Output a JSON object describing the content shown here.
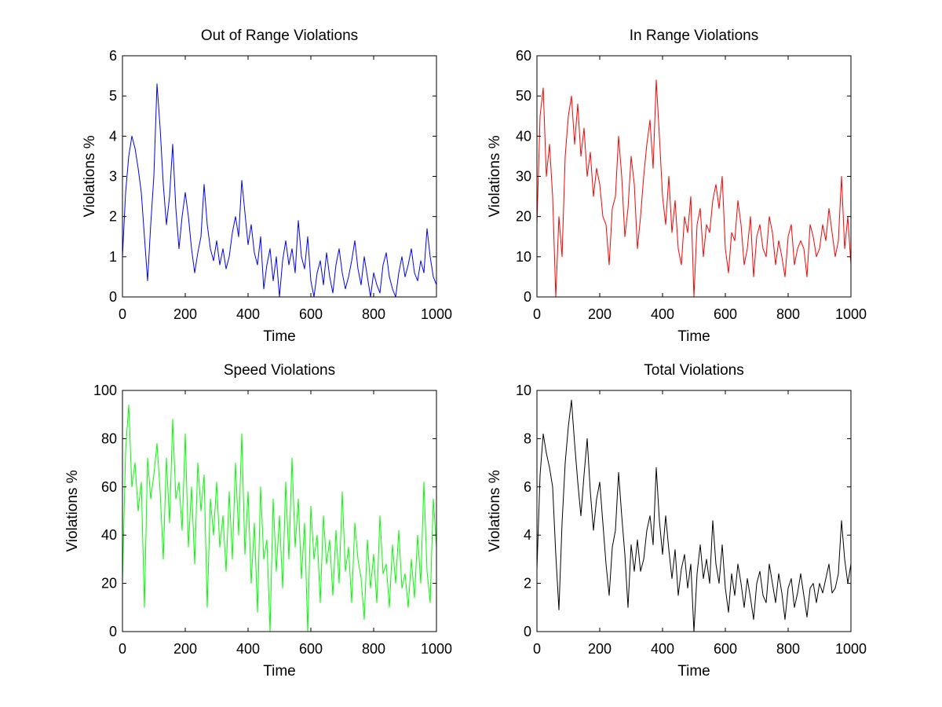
{
  "figure": {
    "background": "#ffffff"
  },
  "chart_data": [
    {
      "type": "line",
      "title": "Out of Range Violations",
      "xlabel": "Time",
      "ylabel": "Violations %",
      "xlim": [
        0,
        1000
      ],
      "ylim": [
        0,
        6
      ],
      "xticks": [
        0,
        200,
        400,
        600,
        800,
        1000
      ],
      "yticks": [
        0,
        1,
        2,
        3,
        4,
        5,
        6
      ],
      "grid": false,
      "series": [
        {
          "color": "#0000ff",
          "x": [
            0,
            10,
            20,
            30,
            40,
            50,
            60,
            70,
            80,
            90,
            100,
            110,
            120,
            130,
            140,
            150,
            160,
            170,
            180,
            190,
            200,
            210,
            220,
            230,
            240,
            250,
            260,
            270,
            280,
            290,
            300,
            310,
            320,
            330,
            340,
            350,
            360,
            370,
            380,
            390,
            400,
            410,
            420,
            430,
            440,
            450,
            460,
            470,
            480,
            490,
            500,
            510,
            520,
            530,
            540,
            550,
            560,
            570,
            580,
            590,
            600,
            610,
            620,
            630,
            640,
            650,
            660,
            670,
            680,
            690,
            700,
            710,
            720,
            730,
            740,
            750,
            760,
            770,
            780,
            790,
            800,
            810,
            820,
            830,
            840,
            850,
            860,
            870,
            880,
            890,
            900,
            910,
            920,
            930,
            940,
            950,
            960,
            970,
            980,
            990,
            1000
          ],
          "values": [
            1.0,
            2.6,
            3.5,
            4.0,
            3.7,
            3.2,
            2.6,
            1.5,
            0.4,
            1.8,
            3.0,
            5.3,
            4.2,
            2.8,
            1.8,
            2.5,
            3.8,
            2.2,
            1.2,
            2.0,
            2.6,
            2.0,
            1.2,
            0.6,
            1.1,
            1.5,
            2.8,
            1.8,
            1.2,
            0.9,
            1.4,
            0.8,
            1.2,
            0.7,
            1.0,
            1.6,
            2.0,
            1.5,
            2.9,
            2.1,
            1.3,
            1.8,
            1.1,
            0.8,
            1.5,
            0.2,
            0.8,
            1.2,
            0.4,
            1.0,
            0.0,
            0.9,
            1.4,
            0.8,
            1.2,
            0.6,
            1.9,
            1.0,
            0.7,
            1.5,
            0.4,
            0.0,
            0.6,
            0.9,
            0.3,
            1.1,
            0.5,
            0.1,
            0.8,
            1.2,
            0.6,
            0.2,
            0.5,
            0.9,
            1.4,
            0.7,
            0.3,
            1.0,
            0.5,
            0.0,
            0.6,
            0.3,
            0.1,
            0.8,
            1.1,
            0.5,
            0.2,
            0.0,
            0.6,
            1.0,
            0.5,
            0.8,
            1.2,
            0.6,
            0.4,
            0.9,
            0.6,
            1.7,
            1.0,
            0.5,
            0.3
          ]
        }
      ]
    },
    {
      "type": "line",
      "title": "In Range Violations",
      "xlabel": "Time",
      "ylabel": "Violations %",
      "xlim": [
        0,
        1000
      ],
      "ylim": [
        0,
        60
      ],
      "xticks": [
        0,
        200,
        400,
        600,
        800,
        1000
      ],
      "yticks": [
        0,
        10,
        20,
        30,
        40,
        50,
        60
      ],
      "grid": false,
      "series": [
        {
          "color": "#ff0000",
          "x": [
            0,
            10,
            20,
            30,
            40,
            50,
            60,
            70,
            80,
            90,
            100,
            110,
            120,
            130,
            140,
            150,
            160,
            170,
            180,
            190,
            200,
            210,
            220,
            230,
            240,
            250,
            260,
            270,
            280,
            290,
            300,
            310,
            320,
            330,
            340,
            350,
            360,
            370,
            380,
            390,
            400,
            410,
            420,
            430,
            440,
            450,
            460,
            470,
            480,
            490,
            500,
            510,
            520,
            530,
            540,
            550,
            560,
            570,
            580,
            590,
            600,
            610,
            620,
            630,
            640,
            650,
            660,
            670,
            680,
            690,
            700,
            710,
            720,
            730,
            740,
            750,
            760,
            770,
            780,
            790,
            800,
            810,
            820,
            830,
            840,
            850,
            860,
            870,
            880,
            890,
            900,
            910,
            920,
            930,
            940,
            950,
            960,
            970,
            980,
            990,
            1000
          ],
          "values": [
            18,
            45,
            52,
            30,
            38,
            25,
            0,
            20,
            10,
            35,
            45,
            50,
            38,
            48,
            35,
            42,
            30,
            36,
            25,
            32,
            28,
            20,
            18,
            8,
            22,
            25,
            40,
            30,
            15,
            22,
            35,
            28,
            12,
            20,
            30,
            38,
            44,
            32,
            54,
            40,
            25,
            18,
            30,
            16,
            24,
            12,
            8,
            20,
            16,
            25,
            0,
            18,
            22,
            10,
            18,
            16,
            24,
            28,
            22,
            30,
            12,
            6,
            16,
            14,
            24,
            18,
            8,
            12,
            20,
            5,
            15,
            18,
            12,
            10,
            20,
            16,
            8,
            14,
            10,
            5,
            15,
            18,
            8,
            12,
            14,
            12,
            5,
            18,
            15,
            10,
            12,
            18,
            14,
            22,
            16,
            10,
            14,
            30,
            12,
            20,
            8
          ]
        }
      ]
    },
    {
      "type": "line",
      "title": "Speed Violations",
      "xlabel": "Time",
      "ylabel": "Violations %",
      "xlim": [
        0,
        1000
      ],
      "ylim": [
        0,
        100
      ],
      "xticks": [
        0,
        200,
        400,
        600,
        800,
        1000
      ],
      "yticks": [
        0,
        20,
        40,
        60,
        80,
        100
      ],
      "grid": false,
      "series": [
        {
          "color": "#00ff00",
          "x": [
            0,
            10,
            20,
            30,
            40,
            50,
            60,
            70,
            80,
            90,
            100,
            110,
            120,
            130,
            140,
            150,
            160,
            170,
            180,
            190,
            200,
            210,
            220,
            230,
            240,
            250,
            260,
            270,
            280,
            290,
            300,
            310,
            320,
            330,
            340,
            350,
            360,
            370,
            380,
            390,
            400,
            410,
            420,
            430,
            440,
            450,
            460,
            470,
            480,
            490,
            500,
            510,
            520,
            530,
            540,
            550,
            560,
            570,
            580,
            590,
            600,
            610,
            620,
            630,
            640,
            650,
            660,
            670,
            680,
            690,
            700,
            710,
            720,
            730,
            740,
            750,
            760,
            770,
            780,
            790,
            800,
            810,
            820,
            830,
            840,
            850,
            860,
            870,
            880,
            890,
            900,
            910,
            920,
            930,
            940,
            950,
            960,
            970,
            980,
            990,
            1000
          ],
          "values": [
            20,
            75,
            94,
            60,
            70,
            50,
            62,
            10,
            72,
            55,
            65,
            78,
            58,
            30,
            72,
            45,
            88,
            55,
            62,
            42,
            82,
            35,
            60,
            28,
            70,
            50,
            65,
            10,
            55,
            40,
            62,
            35,
            48,
            25,
            58,
            30,
            70,
            40,
            82,
            32,
            58,
            20,
            45,
            8,
            60,
            30,
            38,
            0,
            55,
            25,
            48,
            18,
            62,
            30,
            72,
            35,
            55,
            22,
            45,
            0,
            52,
            30,
            40,
            12,
            48,
            28,
            38,
            15,
            42,
            20,
            58,
            25,
            35,
            12,
            45,
            30,
            22,
            5,
            38,
            18,
            32,
            12,
            48,
            24,
            28,
            10,
            36,
            20,
            42,
            18,
            24,
            10,
            30,
            14,
            40,
            20,
            62,
            25,
            12,
            55,
            35
          ]
        }
      ]
    },
    {
      "type": "line",
      "title": "Total Violations",
      "xlabel": "Time",
      "ylabel": "Violations %",
      "xlim": [
        0,
        1000
      ],
      "ylim": [
        0,
        10
      ],
      "xticks": [
        0,
        200,
        400,
        600,
        800,
        1000
      ],
      "yticks": [
        0,
        2,
        4,
        6,
        8,
        10
      ],
      "grid": false,
      "series": [
        {
          "color": "#000000",
          "x": [
            0,
            10,
            20,
            30,
            40,
            50,
            60,
            70,
            80,
            90,
            100,
            110,
            120,
            130,
            140,
            150,
            160,
            170,
            180,
            190,
            200,
            210,
            220,
            230,
            240,
            250,
            260,
            270,
            280,
            290,
            300,
            310,
            320,
            330,
            340,
            350,
            360,
            370,
            380,
            390,
            400,
            410,
            420,
            430,
            440,
            450,
            460,
            470,
            480,
            490,
            500,
            510,
            520,
            530,
            540,
            550,
            560,
            570,
            580,
            590,
            600,
            610,
            620,
            630,
            640,
            650,
            660,
            670,
            680,
            690,
            700,
            710,
            720,
            730,
            740,
            750,
            760,
            770,
            780,
            790,
            800,
            810,
            820,
            830,
            840,
            850,
            860,
            870,
            880,
            890,
            900,
            910,
            920,
            930,
            940,
            950,
            960,
            970,
            980,
            990,
            1000
          ],
          "values": [
            2.6,
            6.5,
            8.2,
            7.4,
            6.8,
            6.0,
            3.2,
            0.9,
            4.5,
            7.0,
            8.5,
            9.6,
            7.8,
            6.2,
            4.8,
            6.5,
            8.0,
            5.8,
            4.2,
            5.5,
            6.2,
            4.5,
            2.8,
            1.5,
            3.5,
            4.2,
            6.6,
            4.8,
            3.2,
            1.0,
            3.6,
            2.5,
            3.8,
            2.5,
            3.0,
            4.2,
            4.8,
            3.6,
            6.8,
            4.6,
            3.2,
            4.8,
            3.4,
            2.2,
            3.4,
            1.5,
            2.6,
            3.2,
            1.8,
            2.8,
            0.0,
            2.4,
            3.6,
            2.2,
            3.0,
            2.0,
            4.6,
            2.8,
            2.0,
            3.6,
            1.8,
            0.8,
            2.4,
            1.5,
            2.8,
            2.0,
            1.0,
            2.2,
            1.4,
            0.5,
            2.0,
            2.5,
            1.5,
            1.2,
            2.8,
            2.0,
            1.2,
            2.4,
            1.6,
            0.5,
            1.8,
            2.2,
            1.0,
            1.6,
            2.4,
            1.5,
            0.6,
            1.8,
            2.0,
            1.2,
            2.0,
            1.6,
            2.2,
            2.8,
            1.6,
            1.8,
            2.4,
            4.6,
            3.0,
            2.0,
            2.8
          ]
        }
      ]
    }
  ]
}
